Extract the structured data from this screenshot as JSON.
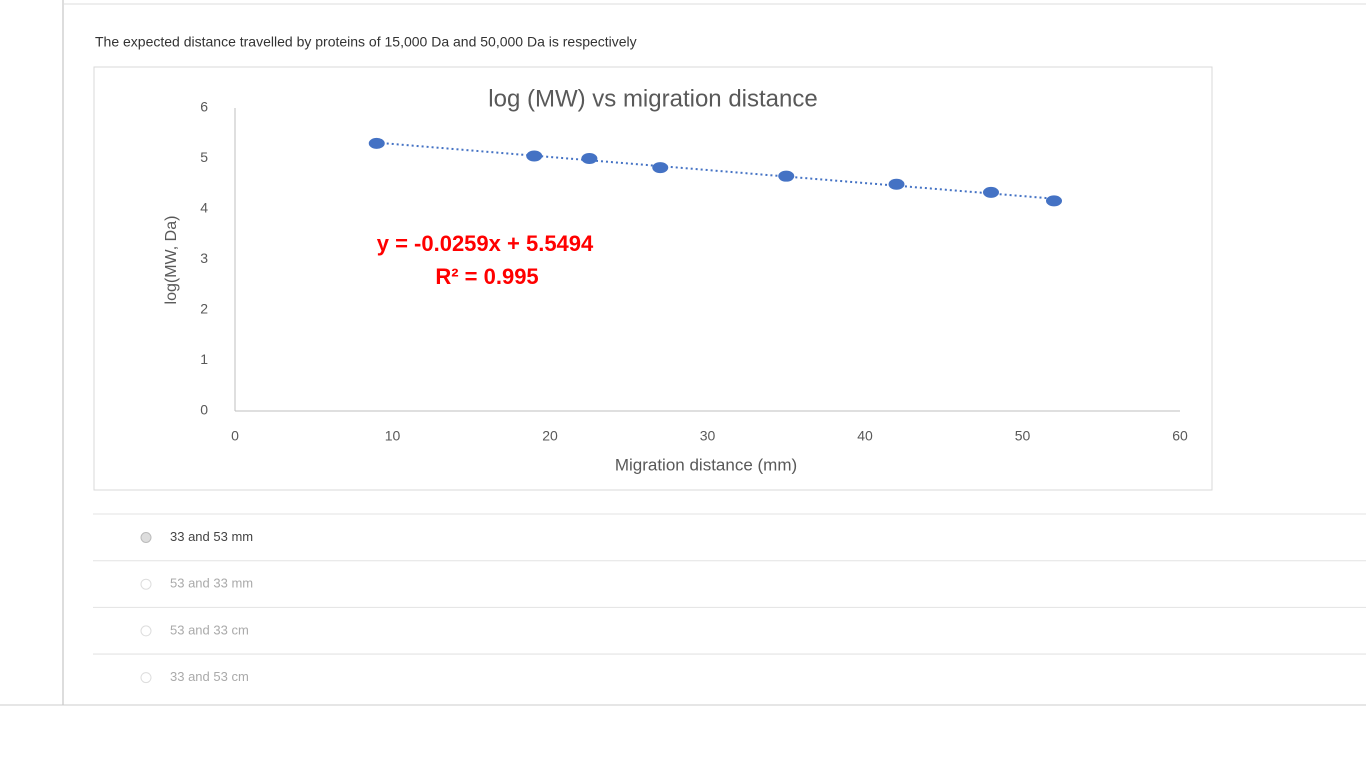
{
  "question": "The expected distance travelled by proteins of 15,000 Da  and 50,000 Da is respectively",
  "chart_data": {
    "type": "scatter",
    "title": "log (MW) vs migration distance",
    "x_label": "Migration distance (mm)",
    "y_label": "log(MW, Da)",
    "x": [
      9,
      19,
      22.5,
      27,
      35,
      42,
      48,
      52
    ],
    "series": [
      {
        "name": "log(MW, Da)",
        "color": "#4472c4",
        "values": [
          5.3,
          5.05,
          5.0,
          4.82,
          4.65,
          4.49,
          4.33,
          4.16
        ]
      }
    ],
    "trendline": true,
    "annotations": [
      "y = -0.0259x + 5.5494",
      "R² = 0.995"
    ],
    "xlim": [
      0,
      60
    ],
    "xticks": [
      0,
      10,
      20,
      30,
      40,
      50,
      60
    ],
    "ylim": [
      0,
      6
    ],
    "yticks": [
      0,
      1,
      2,
      3,
      4,
      5,
      6
    ]
  },
  "options": [
    "33 and 53 mm",
    "53 and 33 mm",
    "53 and 33 cm",
    "33 and 53 cm"
  ]
}
